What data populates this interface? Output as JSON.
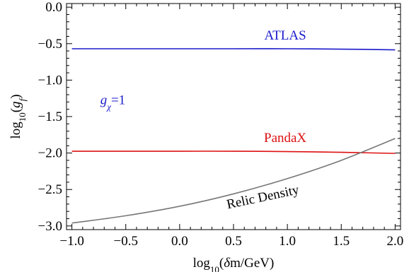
{
  "chart_data": {
    "type": "line",
    "xlabel": "log10(δm/GeV)",
    "ylabel": "log10(gf)",
    "xlim": [
      -1.05,
      2.05
    ],
    "ylim": [
      -3.05,
      0.05
    ],
    "x_ticks": [
      -1.0,
      -0.5,
      0.0,
      0.5,
      1.0,
      1.5,
      2.0
    ],
    "x_tick_labels": [
      "−1.0",
      "−0.5",
      "0.0",
      "0.5",
      "1.0",
      "1.5",
      "2.0"
    ],
    "y_ticks": [
      0.0,
      -0.5,
      -1.0,
      -1.5,
      -2.0,
      -2.5,
      -3.0
    ],
    "y_tick_labels": [
      "0.0",
      "−0.5",
      "−1.0",
      "−1.5",
      "−2.0",
      "−2.5",
      "−3.0"
    ],
    "minor_ticks_per_major": 4,
    "grid": false,
    "series": [
      {
        "name": "ATLAS",
        "color": "#1a1acc",
        "x": [
          -1.0,
          -0.5,
          0.0,
          0.5,
          1.0,
          1.5,
          2.0
        ],
        "y": [
          -0.57,
          -0.57,
          -0.57,
          -0.57,
          -0.57,
          -0.575,
          -0.585
        ]
      },
      {
        "name": "PandaX",
        "color": "#dd1111",
        "x": [
          -1.0,
          -0.5,
          0.0,
          0.5,
          1.0,
          1.5,
          2.0
        ],
        "y": [
          -1.975,
          -1.975,
          -1.975,
          -1.975,
          -1.98,
          -1.99,
          -2.005
        ]
      },
      {
        "name": "Relic Density",
        "color": "#777777",
        "x": [
          -1.0,
          -0.5,
          0.0,
          0.5,
          1.0,
          1.5,
          2.0
        ],
        "y": [
          -2.96,
          -2.86,
          -2.73,
          -2.56,
          -2.35,
          -2.1,
          -1.8
        ]
      }
    ],
    "annotations": [
      {
        "text": "ATLAS",
        "x": 0.98,
        "y": -0.445,
        "color": "#1a1acc"
      },
      {
        "text": "PandaX",
        "x": 0.98,
        "y": -1.85,
        "color": "#dd1111"
      },
      {
        "text": "Relic Density",
        "x": 0.78,
        "y": -2.66,
        "color": "#000000",
        "rotate": -12
      },
      {
        "text": "gχ=1",
        "x": -0.62,
        "y": -1.33,
        "color": "#1a1acc"
      }
    ]
  }
}
